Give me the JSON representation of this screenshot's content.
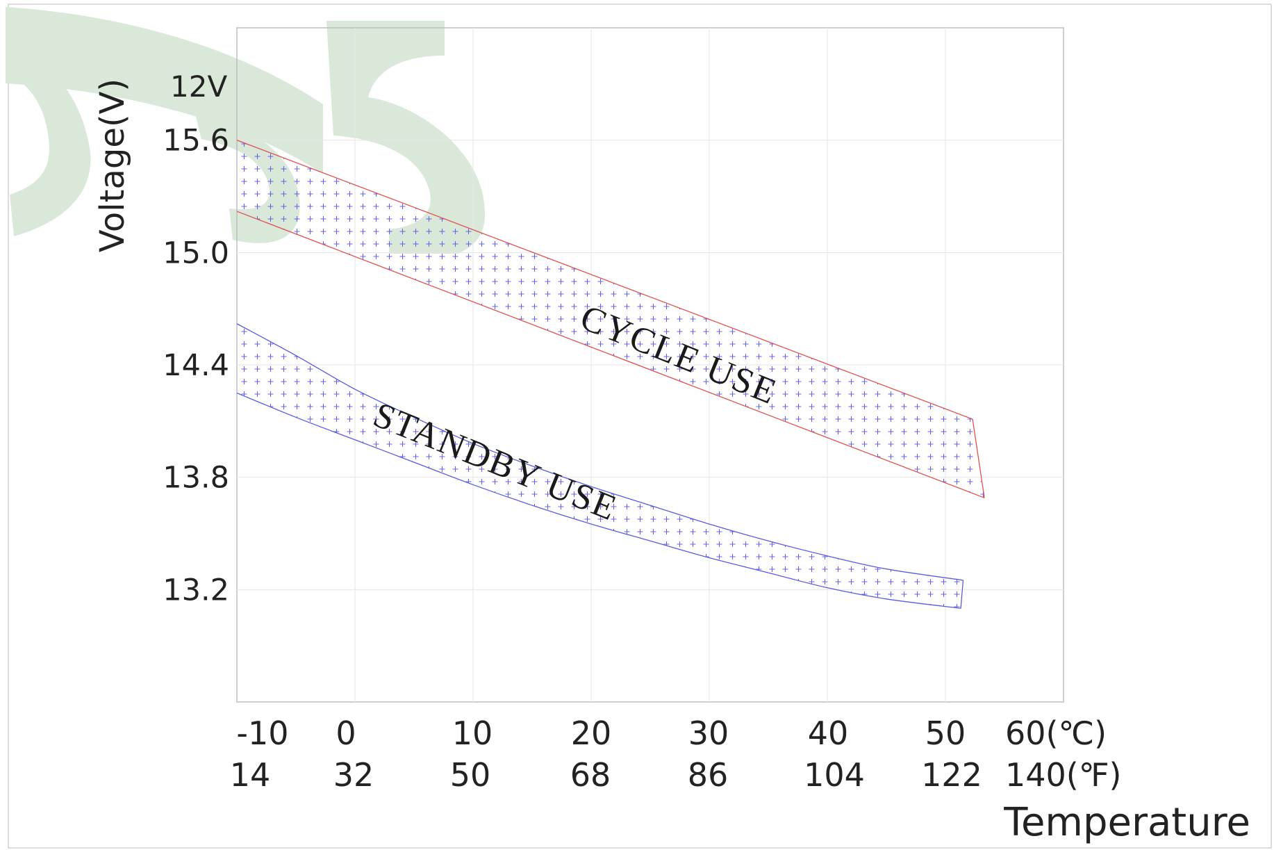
{
  "chart_data": {
    "type": "area",
    "ylabel": "Voltage(V)",
    "xlabel": "Temperature",
    "voltage_label": "12V",
    "y_ticks": [
      "15.6",
      "15.0",
      "14.4",
      "13.8",
      "13.2"
    ],
    "y_tick_values": [
      15.6,
      15.0,
      14.4,
      13.8,
      13.2
    ],
    "ylim": [
      12.6,
      16.2
    ],
    "xlim": [
      -10,
      60
    ],
    "x_ticks_celsius": [
      "-10",
      "0",
      "10",
      "20",
      "30",
      "40",
      "50",
      "60(℃)"
    ],
    "x_ticks_fahrenheit": [
      "14",
      "32",
      "50",
      "68",
      "86",
      "104",
      "122",
      "140(℉)"
    ],
    "x_tick_values": [
      -10,
      0,
      10,
      20,
      30,
      40,
      50,
      60
    ],
    "grid": true,
    "series": [
      {
        "name": "CYCLE USE",
        "color": "#e05050",
        "upper": {
          "x": [
            -10,
            52.3
          ],
          "y": [
            15.6,
            14.11
          ]
        },
        "lower": {
          "x": [
            -10,
            53.3
          ],
          "y": [
            15.22,
            13.69
          ]
        }
      },
      {
        "name": "STANDBY USE",
        "color": "#5a5ae0",
        "upper": {
          "x": [
            -10,
            -5,
            0,
            5,
            10,
            15,
            20,
            25,
            30,
            35,
            40,
            45,
            51.5
          ],
          "y": [
            14.62,
            14.45,
            14.27,
            14.12,
            13.98,
            13.86,
            13.75,
            13.65,
            13.55,
            13.46,
            13.38,
            13.31,
            13.25
          ]
        },
        "lower": {
          "x": [
            -10,
            -5,
            0,
            5,
            10,
            15,
            20,
            25,
            30,
            35,
            40,
            45,
            51.3
          ],
          "y": [
            14.25,
            14.12,
            14.0,
            13.88,
            13.76,
            13.65,
            13.55,
            13.46,
            13.37,
            13.29,
            13.21,
            13.15,
            13.1
          ]
        }
      }
    ]
  },
  "pattern_color": "#6060e6",
  "grid_color": "#e6e6e6",
  "frame_color": "#bdbdbd",
  "watermark_color": "#d9e8d9"
}
